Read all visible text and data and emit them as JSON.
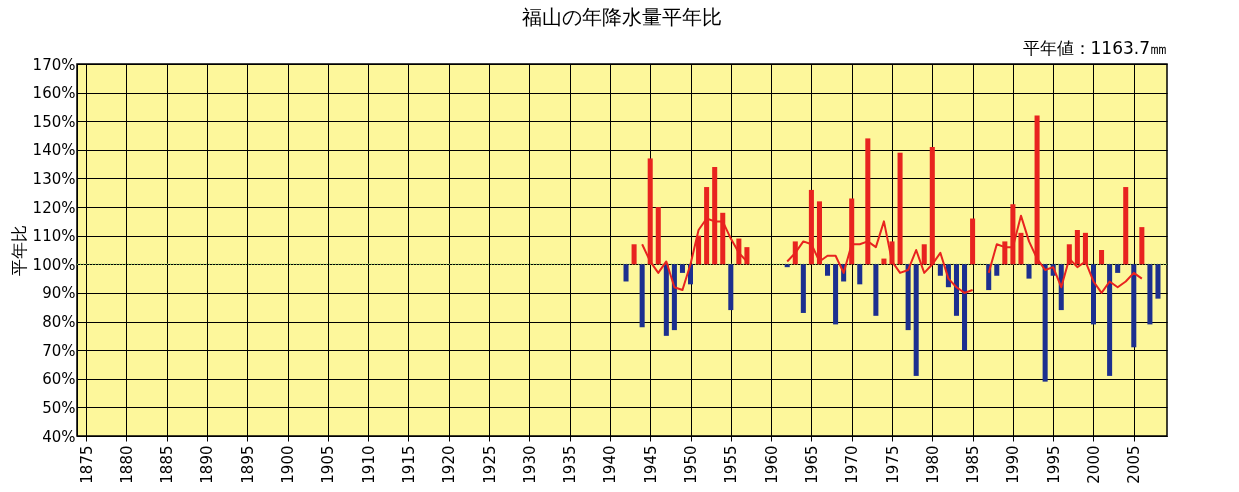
{
  "chart_data": {
    "type": "bar",
    "title": "福山の年降水量平年比",
    "ylabel": "平年比",
    "annotations": [
      "平年値：1163.7㎜"
    ],
    "xlim": [
      1874.5,
      2008.5
    ],
    "xticks": [
      1875,
      1880,
      1885,
      1890,
      1895,
      1900,
      1905,
      1910,
      1915,
      1920,
      1925,
      1930,
      1935,
      1940,
      1945,
      1950,
      1955,
      1960,
      1965,
      1970,
      1975,
      1980,
      1985,
      1990,
      1995,
      2000,
      2005
    ],
    "ylim": [
      40,
      170
    ],
    "yticks": [
      {
        "value": 40,
        "label": "40%"
      },
      {
        "value": 50,
        "label": "50%"
      },
      {
        "value": 60,
        "label": "60%"
      },
      {
        "value": 70,
        "label": "70%"
      },
      {
        "value": 80,
        "label": "80%"
      },
      {
        "value": 90,
        "label": "90%"
      },
      {
        "value": 100,
        "label": "100%"
      },
      {
        "value": 110,
        "label": "110%"
      },
      {
        "value": 120,
        "label": "120%"
      },
      {
        "value": 130,
        "label": "130%"
      },
      {
        "value": 140,
        "label": "140%"
      },
      {
        "value": 150,
        "label": "150%"
      },
      {
        "value": 160,
        "label": "160%"
      },
      {
        "value": 170,
        "label": "170%"
      }
    ],
    "grid": true,
    "ref_lines": [
      {
        "axis": "y",
        "value": 100,
        "color": "#6aa84f",
        "line_style": "dotted"
      }
    ],
    "series": [
      {
        "x": [
          1942,
          1943,
          1944,
          1945,
          1946,
          1947,
          1948,
          1949,
          1950,
          1951,
          1952,
          1953,
          1954,
          1955,
          1956,
          1957,
          1962,
          1963,
          1964,
          1965,
          1966,
          1967,
          1968,
          1969,
          1970,
          1971,
          1972,
          1973,
          1974,
          1975,
          1976,
          1977,
          1978,
          1979,
          1980,
          1981,
          1982,
          1983,
          1984,
          1985,
          1987,
          1988,
          1989,
          1990,
          1991,
          1992,
          1993,
          1994,
          1995,
          1996,
          1997,
          1998,
          1999,
          2000,
          2001,
          2002,
          2003,
          2004,
          2005,
          2006,
          2007,
          2008
        ],
        "values": [
          -6,
          7,
          -22,
          37,
          20,
          -25,
          -23,
          -3,
          -7,
          10,
          27,
          34,
          18,
          -16,
          9,
          6,
          -1,
          8,
          -17,
          26,
          22,
          -4,
          -21,
          -6,
          23,
          -7,
          44,
          -18,
          2,
          8,
          39,
          -23,
          -39,
          7,
          41,
          -4,
          -8,
          -18,
          -30,
          16,
          -9,
          -4,
          8,
          21,
          11,
          -5,
          52,
          -41,
          -4,
          -16,
          7,
          12,
          11,
          -21,
          5,
          -39,
          -3,
          27,
          -29,
          13,
          -21,
          -12
        ],
        "base": [
          100,
          100,
          100,
          100,
          100,
          100,
          100,
          100,
          100,
          100,
          100,
          100,
          100,
          100,
          100,
          100,
          100,
          100,
          100,
          100,
          100,
          100,
          100,
          100,
          100,
          100,
          100,
          100,
          100,
          100,
          100,
          100,
          100,
          100,
          100,
          100,
          100,
          100,
          100,
          100,
          100,
          100,
          100,
          100,
          100,
          100,
          100,
          100,
          100,
          100,
          100,
          100,
          100,
          100,
          100,
          100,
          100,
          100,
          100,
          100,
          100,
          100
        ],
        "colors": [
          "#1c2f8f",
          "#e8231f",
          "#1c2f8f",
          "#e8231f",
          "#e8231f",
          "#1c2f8f",
          "#1c2f8f",
          "#1c2f8f",
          "#1c2f8f",
          "#e8231f",
          "#e8231f",
          "#e8231f",
          "#e8231f",
          "#1c2f8f",
          "#e8231f",
          "#e8231f",
          "#1c2f8f",
          "#e8231f",
          "#1c2f8f",
          "#e8231f",
          "#e8231f",
          "#1c2f8f",
          "#1c2f8f",
          "#1c2f8f",
          "#e8231f",
          "#1c2f8f",
          "#e8231f",
          "#1c2f8f",
          "#e8231f",
          "#e8231f",
          "#e8231f",
          "#1c2f8f",
          "#1c2f8f",
          "#e8231f",
          "#e8231f",
          "#1c2f8f",
          "#1c2f8f",
          "#1c2f8f",
          "#1c2f8f",
          "#e8231f",
          "#1c2f8f",
          "#1c2f8f",
          "#e8231f",
          "#e8231f",
          "#e8231f",
          "#1c2f8f",
          "#e8231f",
          "#1c2f8f",
          "#1c2f8f",
          "#1c2f8f",
          "#e8231f",
          "#e8231f",
          "#e8231f",
          "#1c2f8f",
          "#e8231f",
          "#1c2f8f",
          "#1c2f8f",
          "#e8231f",
          "#1c2f8f",
          "#e8231f",
          "#1c2f8f",
          "#1c2f8f"
        ]
      },
      {
        "type": "line",
        "color": "#e8231f",
        "x": [
          1944,
          1945,
          1946,
          1947,
          1948,
          1949,
          1950,
          1951,
          1952,
          1953,
          1954,
          1955,
          1956,
          1957,
          1958,
          1962,
          1963,
          1964,
          1965,
          1966,
          1967,
          1968,
          1969,
          1970,
          1971,
          1972,
          1973,
          1974,
          1975,
          1976,
          1977,
          1978,
          1979,
          1980,
          1981,
          1982,
          1983,
          1984,
          1985,
          1986,
          1987,
          1988,
          1989,
          1990,
          1991,
          1992,
          1993,
          1994,
          1995,
          1996,
          1997,
          1998,
          1999,
          2000,
          2001,
          2002,
          2003,
          2004,
          2005,
          2006
        ],
        "values": [
          107,
          101,
          97,
          101,
          92,
          91,
          100,
          112,
          116,
          115,
          115,
          109,
          104,
          101,
          null,
          101,
          104,
          108,
          107,
          101,
          103,
          103,
          97,
          107,
          107,
          108,
          106,
          115,
          101,
          97,
          98,
          105,
          97,
          100,
          104,
          95,
          92,
          90,
          91,
          null,
          97,
          107,
          106,
          106,
          117,
          108,
          102,
          98,
          99,
          92,
          102,
          99,
          101,
          94,
          90,
          94,
          92,
          94,
          97,
          95
        ]
      }
    ]
  }
}
